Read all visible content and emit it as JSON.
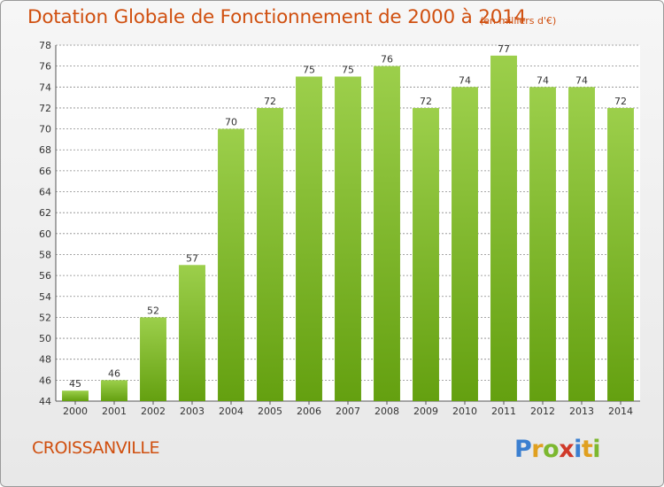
{
  "header": {
    "title": "Dotation Globale de Fonctionnement de 2000 à 2014",
    "unit": "(en milliers d'€)"
  },
  "footer": {
    "commune": "CROISSANVILLE",
    "logo_text": "Proxiti"
  },
  "colors": {
    "title": "#d05010",
    "bar_top": "#9ccf4b",
    "bar_bottom": "#64a010",
    "grid": "#8a8a8a"
  },
  "chart_data": {
    "type": "bar",
    "title": "Dotation Globale de Fonctionnement de 2000 à 2014",
    "subtitle": "(en milliers d'€)",
    "xlabel": "",
    "ylabel": "",
    "categories": [
      "2000",
      "2001",
      "2002",
      "2003",
      "2004",
      "2005",
      "2006",
      "2007",
      "2008",
      "2009",
      "2010",
      "2011",
      "2012",
      "2013",
      "2014"
    ],
    "values": [
      45,
      46,
      52,
      57,
      70,
      72,
      75,
      75,
      76,
      72,
      74,
      77,
      74,
      74,
      72
    ],
    "ylim": [
      44,
      78
    ],
    "yticks": [
      44,
      46,
      48,
      50,
      52,
      54,
      56,
      58,
      60,
      62,
      64,
      66,
      68,
      70,
      72,
      74,
      76,
      78
    ],
    "grid": true,
    "data_labels": true
  }
}
